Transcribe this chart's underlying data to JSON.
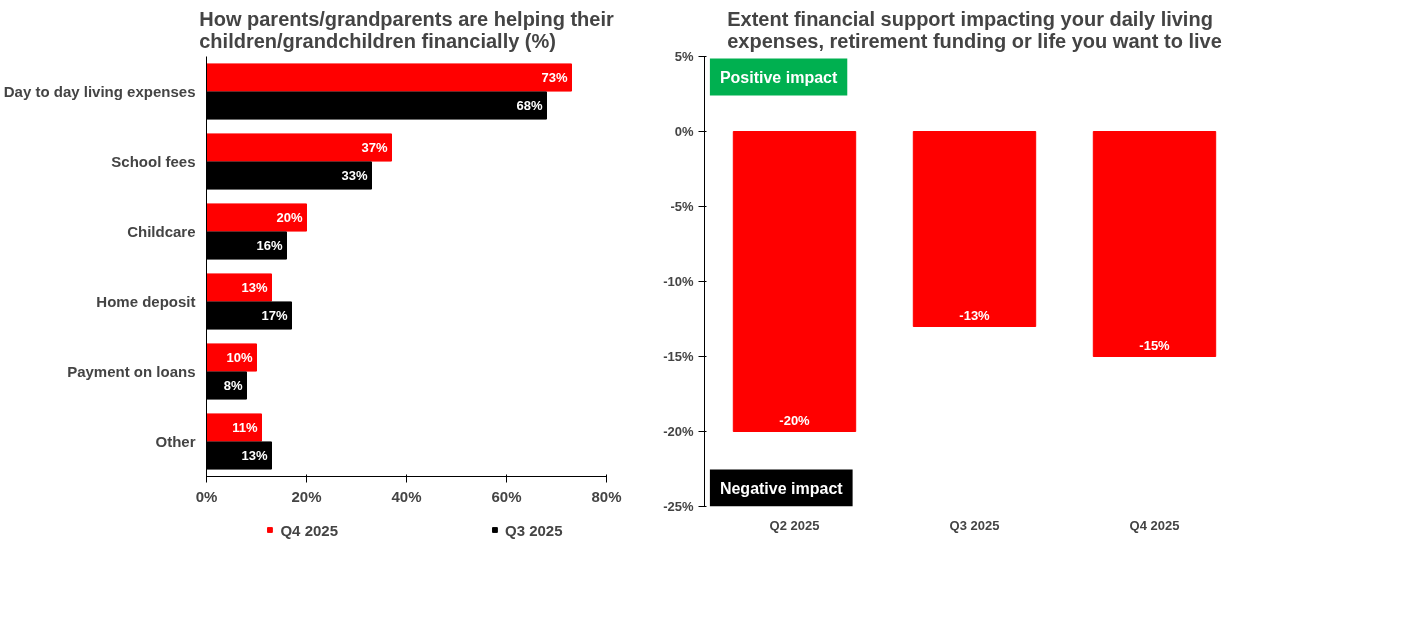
{
  "chart_data": [
    {
      "type": "bar",
      "orientation": "horizontal",
      "title": "How parents/grandparents are helping their children/grandchildren financially (%)",
      "categories": [
        "Day to day living expenses",
        "School fees",
        "Childcare",
        "Home deposit",
        "Payment on loans",
        "Other"
      ],
      "series": [
        {
          "name": "Q4 2025",
          "color": "#ff0000",
          "values": [
            73,
            37,
            20,
            13,
            10,
            11
          ],
          "value_labels": [
            "73%",
            "37%",
            "20%",
            "13%",
            "10%",
            "11%"
          ]
        },
        {
          "name": "Q3 2025",
          "color": "#000000",
          "values": [
            68,
            33,
            16,
            17,
            8,
            13
          ],
          "value_labels": [
            "68%",
            "33%",
            "16%",
            "17%",
            "8%",
            "13%"
          ]
        }
      ],
      "xlim": [
        0,
        80
      ],
      "xticks": [
        {
          "value": 0,
          "label": "0%"
        },
        {
          "value": 20,
          "label": "20%"
        },
        {
          "value": 40,
          "label": "40%"
        },
        {
          "value": 60,
          "label": "60%"
        },
        {
          "value": 80,
          "label": "80%"
        }
      ],
      "legend": "bottom",
      "grid": false
    },
    {
      "type": "bar",
      "title": "Extent financial support impacting your daily living expenses, retirement funding or life you want to live",
      "categories": [
        "Q2 2025",
        "Q3 2025",
        "Q4 2025"
      ],
      "series": [
        {
          "color": "#ff0000",
          "values": [
            -20,
            -13,
            -15
          ],
          "value_labels": [
            "-20%",
            "-13%",
            "-15%"
          ]
        }
      ],
      "ylim": [
        -25,
        5
      ],
      "yticks": [
        {
          "value": -25,
          "label": "-25%"
        },
        {
          "value": -20,
          "label": "-20%"
        },
        {
          "value": -15,
          "label": "-15%"
        },
        {
          "value": -10,
          "label": "-10%"
        },
        {
          "value": -5,
          "label": "-5%"
        },
        {
          "value": 0,
          "label": "0%"
        },
        {
          "value": 5,
          "label": "5%"
        }
      ],
      "annotations": [
        "Positive impact",
        "Negative impact"
      ],
      "grid": false
    }
  ]
}
